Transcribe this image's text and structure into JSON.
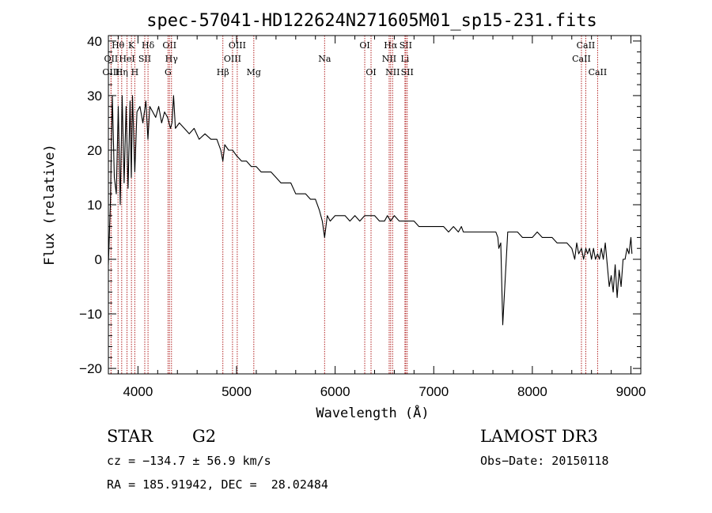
{
  "chart_data": {
    "type": "line",
    "title": "spec-57041-HD122624N271605M01_sp15-231.fits",
    "xlabel": "Wavelength (Å)",
    "ylabel": "Flux (relative)",
    "xlim": [
      3700,
      9100
    ],
    "ylim": [
      -21,
      41
    ],
    "xticks": [
      {
        "value": 4000,
        "label": "4000"
      },
      {
        "value": 5000,
        "label": "5000"
      },
      {
        "value": 6000,
        "label": "6000"
      },
      {
        "value": 7000,
        "label": "7000"
      },
      {
        "value": 8000,
        "label": "8000"
      },
      {
        "value": 9000,
        "label": "9000"
      }
    ],
    "yticks": [
      {
        "value": 40,
        "label": "40"
      },
      {
        "value": 30,
        "label": "30"
      },
      {
        "value": 20,
        "label": "20"
      },
      {
        "value": 10,
        "label": "10"
      },
      {
        "value": 0,
        "label": "0"
      },
      {
        "value": -10,
        "label": "−10"
      },
      {
        "value": -20,
        "label": "−20"
      }
    ],
    "line_color": "#000000",
    "marker_color": "#b22222",
    "series": [
      {
        "name": "spectrum",
        "x": [
          3700,
          3720,
          3740,
          3760,
          3780,
          3800,
          3820,
          3840,
          3860,
          3880,
          3900,
          3920,
          3933,
          3945,
          3968,
          3990,
          4020,
          4050,
          4080,
          4101,
          4120,
          4150,
          4180,
          4210,
          4240,
          4270,
          4300,
          4330,
          4345,
          4361,
          4380,
          4420,
          4470,
          4520,
          4570,
          4620,
          4680,
          4740,
          4800,
          4840,
          4861,
          4880,
          4920,
          4960,
          5000,
          5050,
          5100,
          5150,
          5200,
          5250,
          5300,
          5350,
          5400,
          5450,
          5500,
          5550,
          5600,
          5650,
          5700,
          5750,
          5800,
          5840,
          5870,
          5893,
          5920,
          5950,
          6000,
          6050,
          6100,
          6150,
          6200,
          6250,
          6300,
          6350,
          6400,
          6450,
          6500,
          6530,
          6563,
          6600,
          6650,
          6700,
          6750,
          6800,
          6850,
          6900,
          6950,
          7000,
          7050,
          7100,
          7150,
          7200,
          7250,
          7280,
          7300,
          7350,
          7400,
          7450,
          7500,
          7550,
          7600,
          7630,
          7650,
          7660,
          7680,
          7700,
          7750,
          7800,
          7850,
          7900,
          7950,
          8000,
          8050,
          8100,
          8150,
          8200,
          8250,
          8300,
          8350,
          8400,
          8430,
          8450,
          8470,
          8498,
          8520,
          8542,
          8560,
          8580,
          8600,
          8620,
          8640,
          8662,
          8680,
          8700,
          8720,
          8740,
          8760,
          8780,
          8800,
          8820,
          8840,
          8860,
          8880,
          8900,
          8920,
          8940,
          8960,
          8980,
          9000,
          9010
        ],
        "y": [
          -1,
          10,
          30,
          15,
          12,
          28,
          10,
          30,
          14,
          28,
          13,
          29,
          15,
          30,
          16,
          27,
          28,
          25,
          29,
          22,
          28,
          27,
          26,
          28,
          25,
          27,
          26,
          24,
          25,
          30,
          24,
          25,
          24,
          23,
          24,
          22,
          23,
          22,
          22,
          20,
          18,
          21,
          20,
          20,
          19,
          18,
          18,
          17,
          17,
          16,
          16,
          16,
          15,
          14,
          14,
          14,
          12,
          12,
          12,
          11,
          11,
          9,
          7,
          4,
          8,
          7,
          8,
          8,
          8,
          7,
          8,
          7,
          8,
          8,
          8,
          7,
          7,
          8,
          7,
          8,
          7,
          7,
          7,
          7,
          6,
          6,
          6,
          6,
          6,
          6,
          5,
          6,
          5,
          6,
          5,
          5,
          5,
          5,
          5,
          5,
          5,
          5,
          4,
          2,
          3,
          -12,
          5,
          5,
          5,
          4,
          4,
          4,
          5,
          4,
          4,
          4,
          3,
          3,
          3,
          2,
          0,
          3,
          1,
          2,
          0,
          2,
          1,
          2,
          0,
          2,
          0,
          1,
          0,
          2,
          0,
          3,
          -1,
          -5,
          -3,
          -6,
          -1,
          -7,
          -2,
          -5,
          0,
          0,
          2,
          1,
          4,
          1
        ]
      }
    ],
    "spectral_lines": [
      {
        "label": "Hθ",
        "x": 3798,
        "row": 0
      },
      {
        "label": "K",
        "x": 3934,
        "row": 0
      },
      {
        "label": "Hδ",
        "x": 4102,
        "row": 0
      },
      {
        "label": "OII",
        "x": 4320,
        "row": 0
      },
      {
        "label": "OIII",
        "x": 5007,
        "row": 0
      },
      {
        "label": "OI",
        "x": 6300,
        "row": 0
      },
      {
        "label": "Hα",
        "x": 6563,
        "row": 0
      },
      {
        "label": "SII",
        "x": 6716,
        "row": 0
      },
      {
        "label": "CaII",
        "x": 8542,
        "row": 0
      },
      {
        "label": "OII",
        "x": 3727,
        "row": 1
      },
      {
        "label": "HeI",
        "x": 3889,
        "row": 1
      },
      {
        "label": "SII",
        "x": 4069,
        "row": 1
      },
      {
        "label": "Hγ",
        "x": 4340,
        "row": 1
      },
      {
        "label": "OIII",
        "x": 4959,
        "row": 1
      },
      {
        "label": "Na",
        "x": 5893,
        "row": 1
      },
      {
        "label": "NII",
        "x": 6548,
        "row": 1
      },
      {
        "label": "Li",
        "x": 6708,
        "row": 1
      },
      {
        "label": "CaII",
        "x": 8498,
        "row": 1
      },
      {
        "label": "OIII",
        "x": 3727,
        "row": 2
      },
      {
        "label": "Hη",
        "x": 3835,
        "row": 2
      },
      {
        "label": "H",
        "x": 3968,
        "row": 2
      },
      {
        "label": "G",
        "x": 4305,
        "row": 2
      },
      {
        "label": "Hβ",
        "x": 4861,
        "row": 2
      },
      {
        "label": "Mg",
        "x": 5175,
        "row": 2
      },
      {
        "label": "OI",
        "x": 6364,
        "row": 2
      },
      {
        "label": "NII",
        "x": 6583,
        "row": 2
      },
      {
        "label": "SII",
        "x": 6731,
        "row": 2
      },
      {
        "label": "CaII",
        "x": 8662,
        "row": 2
      }
    ]
  },
  "info": {
    "object_class": "STAR",
    "subclass": "G2",
    "survey": "LAMOST DR3",
    "redshift": "cz = −134.7 ± 56.9 km/s",
    "obs_date": "Obs−Date: 20150118",
    "coords": "RA = 185.91942, DEC =  28.02484"
  }
}
